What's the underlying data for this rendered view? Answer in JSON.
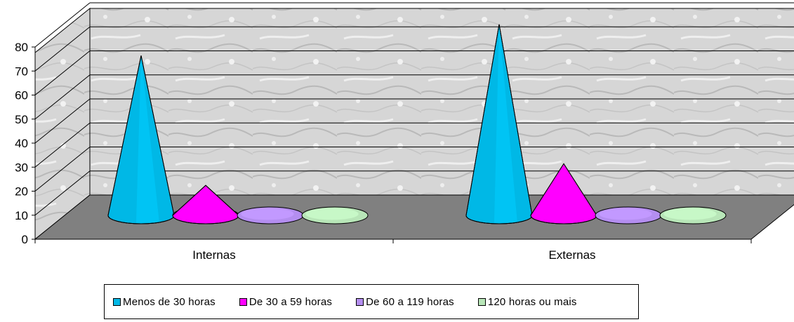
{
  "chart_data": {
    "type": "bar",
    "subtype": "3d-cone",
    "categories": [
      "Internas",
      "Externas"
    ],
    "series": [
      {
        "name": "Menos de 30 horas",
        "values": [
          70,
          83
        ],
        "color": "#00B8E6"
      },
      {
        "name": "De 30 a 59 horas",
        "values": [
          16,
          25
        ],
        "color": "#FF00FF"
      },
      {
        "name": "De 60 a 119 horas",
        "values": [
          0,
          0
        ],
        "color": "#B48EF0"
      },
      {
        "name": "120 horas ou mais",
        "values": [
          0,
          0
        ],
        "color": "#B8E6B8"
      }
    ],
    "y_ticks": [
      "0",
      "10",
      "20",
      "30",
      "40",
      "50",
      "60",
      "70",
      "80"
    ],
    "ylim": [
      0,
      80
    ],
    "grid": true,
    "legend_position": "bottom",
    "title": "",
    "xlabel": "",
    "ylabel": ""
  },
  "colors": {
    "floor": "#808080",
    "wall": "#d9d9d9",
    "grid": "#000000"
  }
}
